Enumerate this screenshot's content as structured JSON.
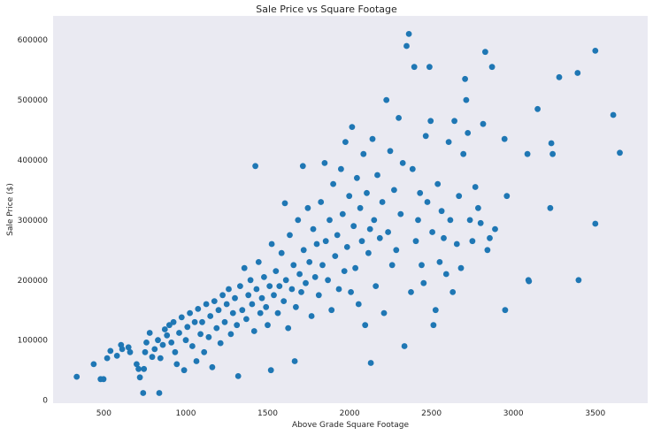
{
  "chart_data": {
    "type": "scatter",
    "title": "Sale Price vs Square Footage",
    "xlabel": "Above Grade Square Footage",
    "ylabel": "Sale Price ($)",
    "xlim": [
      190,
      3820
    ],
    "ylim": [
      -5000,
      640000
    ],
    "xticks": [
      500,
      1000,
      1500,
      2000,
      2500,
      3000,
      3500
    ],
    "yticks": [
      0,
      100000,
      200000,
      300000,
      400000,
      500000,
      600000
    ],
    "grid": false,
    "background": "#eaeaf2",
    "marker_color": "#1f77b4",
    "points": [
      [
        334,
        39000
      ],
      [
        438,
        60000
      ],
      [
        480,
        35000
      ],
      [
        498,
        35000
      ],
      [
        520,
        70000
      ],
      [
        540,
        82000
      ],
      [
        580,
        74000
      ],
      [
        605,
        92000
      ],
      [
        612,
        85000
      ],
      [
        650,
        88000
      ],
      [
        660,
        80000
      ],
      [
        700,
        60000
      ],
      [
        712,
        52000
      ],
      [
        720,
        38000
      ],
      [
        740,
        12000
      ],
      [
        745,
        52000
      ],
      [
        752,
        80000
      ],
      [
        760,
        96000
      ],
      [
        780,
        112000
      ],
      [
        795,
        72000
      ],
      [
        810,
        85000
      ],
      [
        830,
        100000
      ],
      [
        838,
        12000
      ],
      [
        845,
        70000
      ],
      [
        860,
        92000
      ],
      [
        872,
        118000
      ],
      [
        885,
        108000
      ],
      [
        900,
        125000
      ],
      [
        912,
        96000
      ],
      [
        925,
        130000
      ],
      [
        935,
        80000
      ],
      [
        945,
        60000
      ],
      [
        960,
        112000
      ],
      [
        975,
        138000
      ],
      [
        990,
        50000
      ],
      [
        1000,
        100000
      ],
      [
        1010,
        122000
      ],
      [
        1025,
        145000
      ],
      [
        1040,
        90000
      ],
      [
        1055,
        130000
      ],
      [
        1065,
        65000
      ],
      [
        1075,
        152000
      ],
      [
        1090,
        110000
      ],
      [
        1100,
        130000
      ],
      [
        1112,
        80000
      ],
      [
        1125,
        160000
      ],
      [
        1140,
        105000
      ],
      [
        1150,
        140000
      ],
      [
        1162,
        55000
      ],
      [
        1175,
        165000
      ],
      [
        1188,
        120000
      ],
      [
        1200,
        150000
      ],
      [
        1212,
        95000
      ],
      [
        1225,
        175000
      ],
      [
        1238,
        130000
      ],
      [
        1250,
        160000
      ],
      [
        1262,
        185000
      ],
      [
        1275,
        110000
      ],
      [
        1288,
        145000
      ],
      [
        1300,
        170000
      ],
      [
        1312,
        125000
      ],
      [
        1320,
        40000
      ],
      [
        1332,
        190000
      ],
      [
        1345,
        150000
      ],
      [
        1358,
        220000
      ],
      [
        1370,
        135000
      ],
      [
        1382,
        175000
      ],
      [
        1395,
        200000
      ],
      [
        1405,
        160000
      ],
      [
        1418,
        115000
      ],
      [
        1425,
        390000
      ],
      [
        1432,
        185000
      ],
      [
        1445,
        230000
      ],
      [
        1455,
        145000
      ],
      [
        1465,
        170000
      ],
      [
        1478,
        205000
      ],
      [
        1490,
        155000
      ],
      [
        1500,
        125000
      ],
      [
        1512,
        190000
      ],
      [
        1520,
        50000
      ],
      [
        1525,
        260000
      ],
      [
        1538,
        175000
      ],
      [
        1550,
        215000
      ],
      [
        1562,
        145000
      ],
      [
        1572,
        190000
      ],
      [
        1585,
        245000
      ],
      [
        1598,
        165000
      ],
      [
        1605,
        328000
      ],
      [
        1612,
        200000
      ],
      [
        1625,
        120000
      ],
      [
        1635,
        275000
      ],
      [
        1648,
        185000
      ],
      [
        1658,
        225000
      ],
      [
        1665,
        65000
      ],
      [
        1672,
        155000
      ],
      [
        1685,
        300000
      ],
      [
        1695,
        210000
      ],
      [
        1705,
        180000
      ],
      [
        1715,
        390000
      ],
      [
        1720,
        250000
      ],
      [
        1732,
        195000
      ],
      [
        1745,
        320000
      ],
      [
        1755,
        230000
      ],
      [
        1768,
        140000
      ],
      [
        1778,
        285000
      ],
      [
        1790,
        205000
      ],
      [
        1800,
        260000
      ],
      [
        1812,
        175000
      ],
      [
        1825,
        330000
      ],
      [
        1835,
        225000
      ],
      [
        1848,
        395000
      ],
      [
        1855,
        265000
      ],
      [
        1868,
        200000
      ],
      [
        1878,
        300000
      ],
      [
        1890,
        150000
      ],
      [
        1900,
        360000
      ],
      [
        1912,
        240000
      ],
      [
        1925,
        275000
      ],
      [
        1935,
        185000
      ],
      [
        1948,
        385000
      ],
      [
        1958,
        310000
      ],
      [
        1968,
        215000
      ],
      [
        1975,
        430000
      ],
      [
        1985,
        255000
      ],
      [
        1998,
        340000
      ],
      [
        2008,
        180000
      ],
      [
        2015,
        455000
      ],
      [
        2025,
        290000
      ],
      [
        2035,
        220000
      ],
      [
        2045,
        370000
      ],
      [
        2055,
        160000
      ],
      [
        2065,
        320000
      ],
      [
        2075,
        265000
      ],
      [
        2085,
        410000
      ],
      [
        2095,
        125000
      ],
      [
        2105,
        345000
      ],
      [
        2115,
        245000
      ],
      [
        2125,
        285000
      ],
      [
        2130,
        62000
      ],
      [
        2140,
        435000
      ],
      [
        2150,
        300000
      ],
      [
        2160,
        190000
      ],
      [
        2170,
        375000
      ],
      [
        2185,
        270000
      ],
      [
        2200,
        330000
      ],
      [
        2210,
        145000
      ],
      [
        2225,
        500000
      ],
      [
        2235,
        280000
      ],
      [
        2248,
        415000
      ],
      [
        2260,
        225000
      ],
      [
        2272,
        350000
      ],
      [
        2285,
        250000
      ],
      [
        2300,
        470000
      ],
      [
        2312,
        310000
      ],
      [
        2325,
        395000
      ],
      [
        2335,
        90000
      ],
      [
        2348,
        590000
      ],
      [
        2362,
        610000
      ],
      [
        2375,
        180000
      ],
      [
        2385,
        385000
      ],
      [
        2395,
        555000
      ],
      [
        2405,
        265000
      ],
      [
        2418,
        300000
      ],
      [
        2430,
        345000
      ],
      [
        2440,
        225000
      ],
      [
        2452,
        195000
      ],
      [
        2465,
        440000
      ],
      [
        2475,
        330000
      ],
      [
        2488,
        555000
      ],
      [
        2495,
        465000
      ],
      [
        2505,
        280000
      ],
      [
        2512,
        125000
      ],
      [
        2525,
        150000
      ],
      [
        2538,
        360000
      ],
      [
        2550,
        230000
      ],
      [
        2562,
        315000
      ],
      [
        2575,
        270000
      ],
      [
        2590,
        210000
      ],
      [
        2605,
        430000
      ],
      [
        2615,
        300000
      ],
      [
        2630,
        180000
      ],
      [
        2640,
        465000
      ],
      [
        2655,
        260000
      ],
      [
        2668,
        340000
      ],
      [
        2680,
        220000
      ],
      [
        2695,
        410000
      ],
      [
        2705,
        535000
      ],
      [
        2712,
        500000
      ],
      [
        2722,
        445000
      ],
      [
        2735,
        300000
      ],
      [
        2750,
        265000
      ],
      [
        2768,
        355000
      ],
      [
        2785,
        320000
      ],
      [
        2800,
        295000
      ],
      [
        2815,
        460000
      ],
      [
        2828,
        580000
      ],
      [
        2842,
        250000
      ],
      [
        2856,
        270000
      ],
      [
        2870,
        555000
      ],
      [
        2888,
        285000
      ],
      [
        2946,
        435000
      ],
      [
        2950,
        150000
      ],
      [
        2960,
        340000
      ],
      [
        3086,
        410000
      ],
      [
        3092,
        200000
      ],
      [
        3095,
        198000
      ],
      [
        3148,
        485000
      ],
      [
        3225,
        320000
      ],
      [
        3232,
        428000
      ],
      [
        3240,
        410000
      ],
      [
        3280,
        538000
      ],
      [
        3392,
        545000
      ],
      [
        3398,
        200000
      ],
      [
        3610,
        475000
      ],
      [
        3650,
        412000
      ],
      [
        3500,
        582000
      ],
      [
        3500,
        294000
      ]
    ]
  }
}
